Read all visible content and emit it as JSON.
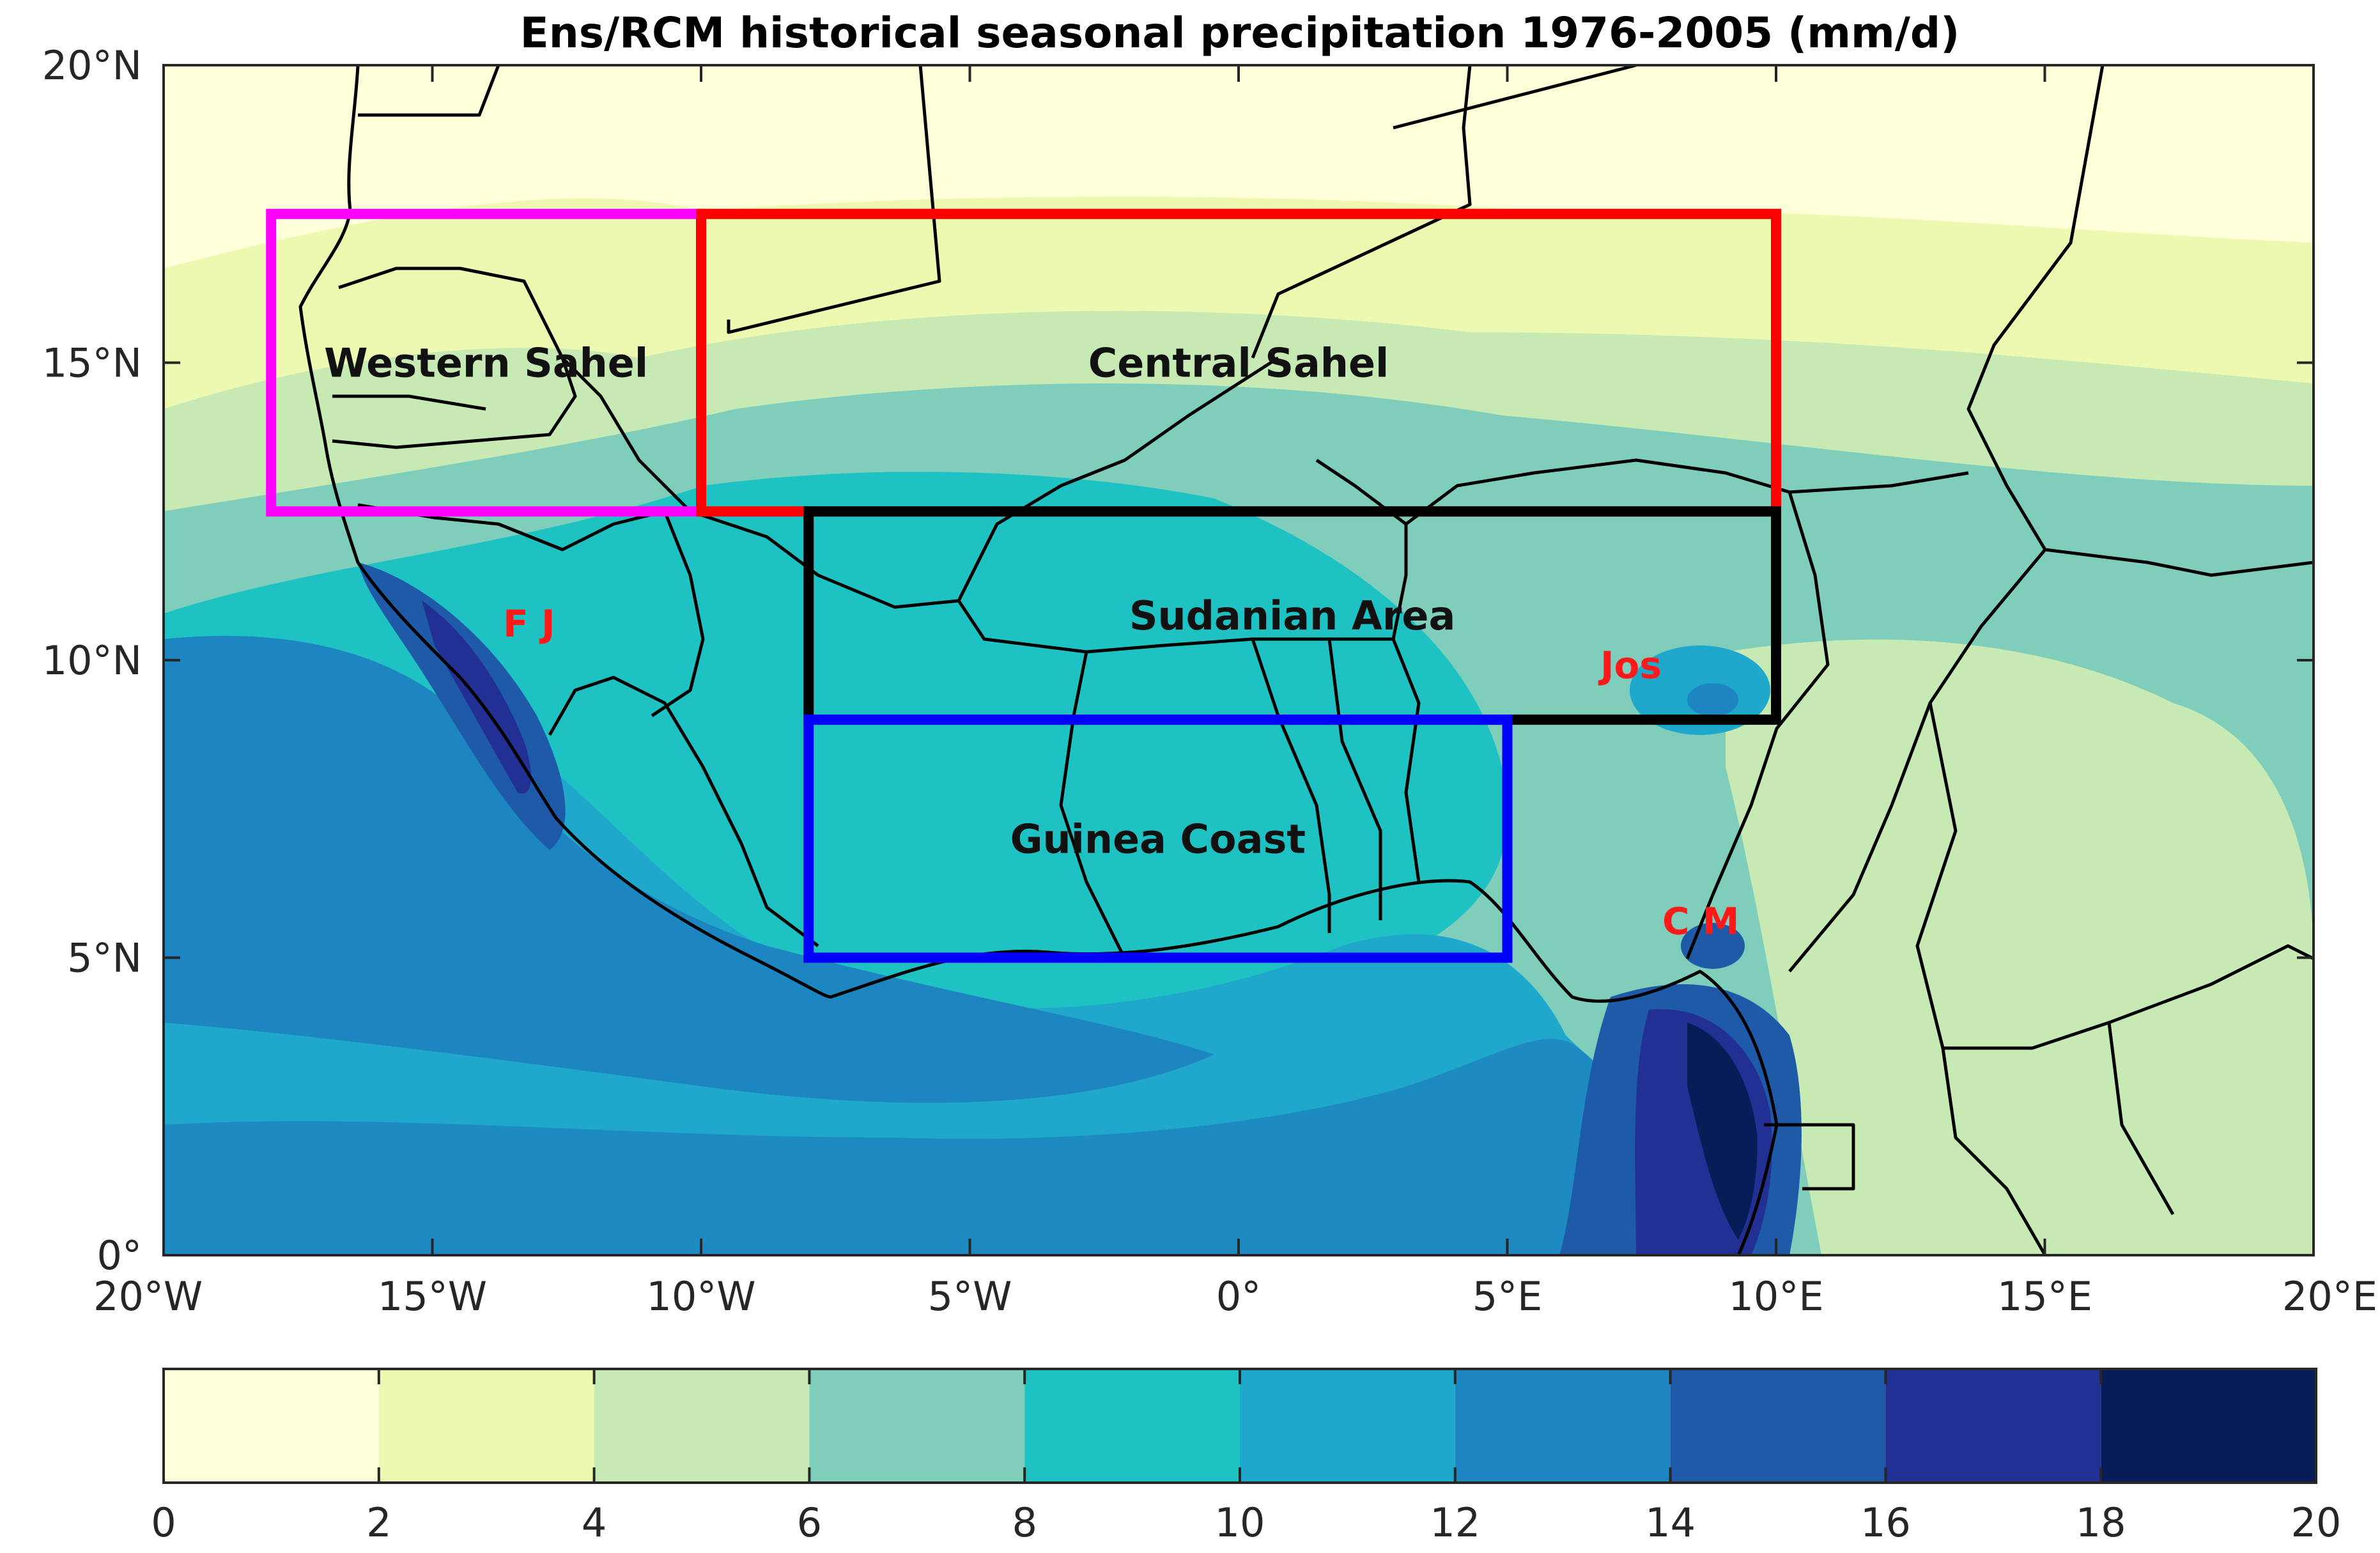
{
  "title": "Ens/RCM historical seasonal precipitation 1976-2005 (mm/d)",
  "map": {
    "lon_range": [
      -20,
      20
    ],
    "lat_range": [
      0,
      20
    ],
    "lon_ticks": [
      {
        "value": -20,
        "label": "20°W"
      },
      {
        "value": -15,
        "label": "15°W"
      },
      {
        "value": -10,
        "label": "10°W"
      },
      {
        "value": -5,
        "label": "5°W"
      },
      {
        "value": 0,
        "label": "0°"
      },
      {
        "value": 5,
        "label": "5°E"
      },
      {
        "value": 10,
        "label": "10°E"
      },
      {
        "value": 15,
        "label": "15°E"
      },
      {
        "value": 20,
        "label": "20°E"
      }
    ],
    "lat_ticks": [
      {
        "value": 0,
        "label": "0°"
      },
      {
        "value": 5,
        "label": "5°N"
      },
      {
        "value": 10,
        "label": "10°N"
      },
      {
        "value": 15,
        "label": "15°N"
      },
      {
        "value": 20,
        "label": "20°N"
      }
    ],
    "regions": [
      {
        "name": "Western Sahel",
        "color": "#ff00ff",
        "lon": [
          -18,
          -10
        ],
        "lat": [
          12.5,
          17.5
        ]
      },
      {
        "name": "Central Sahel",
        "color": "#ff0000",
        "lon": [
          -10,
          10
        ],
        "lat": [
          12.5,
          17.5
        ]
      },
      {
        "name": "Sudanian Area",
        "color": "#000000",
        "lon": [
          -8,
          10
        ],
        "lat": [
          9,
          12.5
        ]
      },
      {
        "name": "Guinea Coast",
        "color": "#0000ff",
        "lon": [
          -8,
          5
        ],
        "lat": [
          5,
          9
        ]
      }
    ],
    "stations": [
      {
        "label": "F J",
        "color": "#ff1a1a",
        "lon": -13.2,
        "lat": 10.4
      },
      {
        "label": "Jos",
        "color": "#ff1a1a",
        "lon": 7.3,
        "lat": 9.7
      },
      {
        "label": "C M",
        "color": "#ff1a1a",
        "lon": 8.6,
        "lat": 5.4
      }
    ]
  },
  "colorbar": {
    "levels": [
      0,
      2,
      4,
      6,
      8,
      10,
      12,
      14,
      16,
      18,
      20
    ],
    "tick_labels": [
      "0",
      "2",
      "4",
      "6",
      "8",
      "10",
      "12",
      "14",
      "16",
      "18",
      "20"
    ],
    "colors": [
      "#ffffd9",
      "#edf8b1",
      "#c7e9b4",
      "#7fcdbb",
      "#1fc2c2",
      "#1fa8cc",
      "#1d86c0",
      "#1f5aa8",
      "#223094",
      "#081d58"
    ]
  }
}
